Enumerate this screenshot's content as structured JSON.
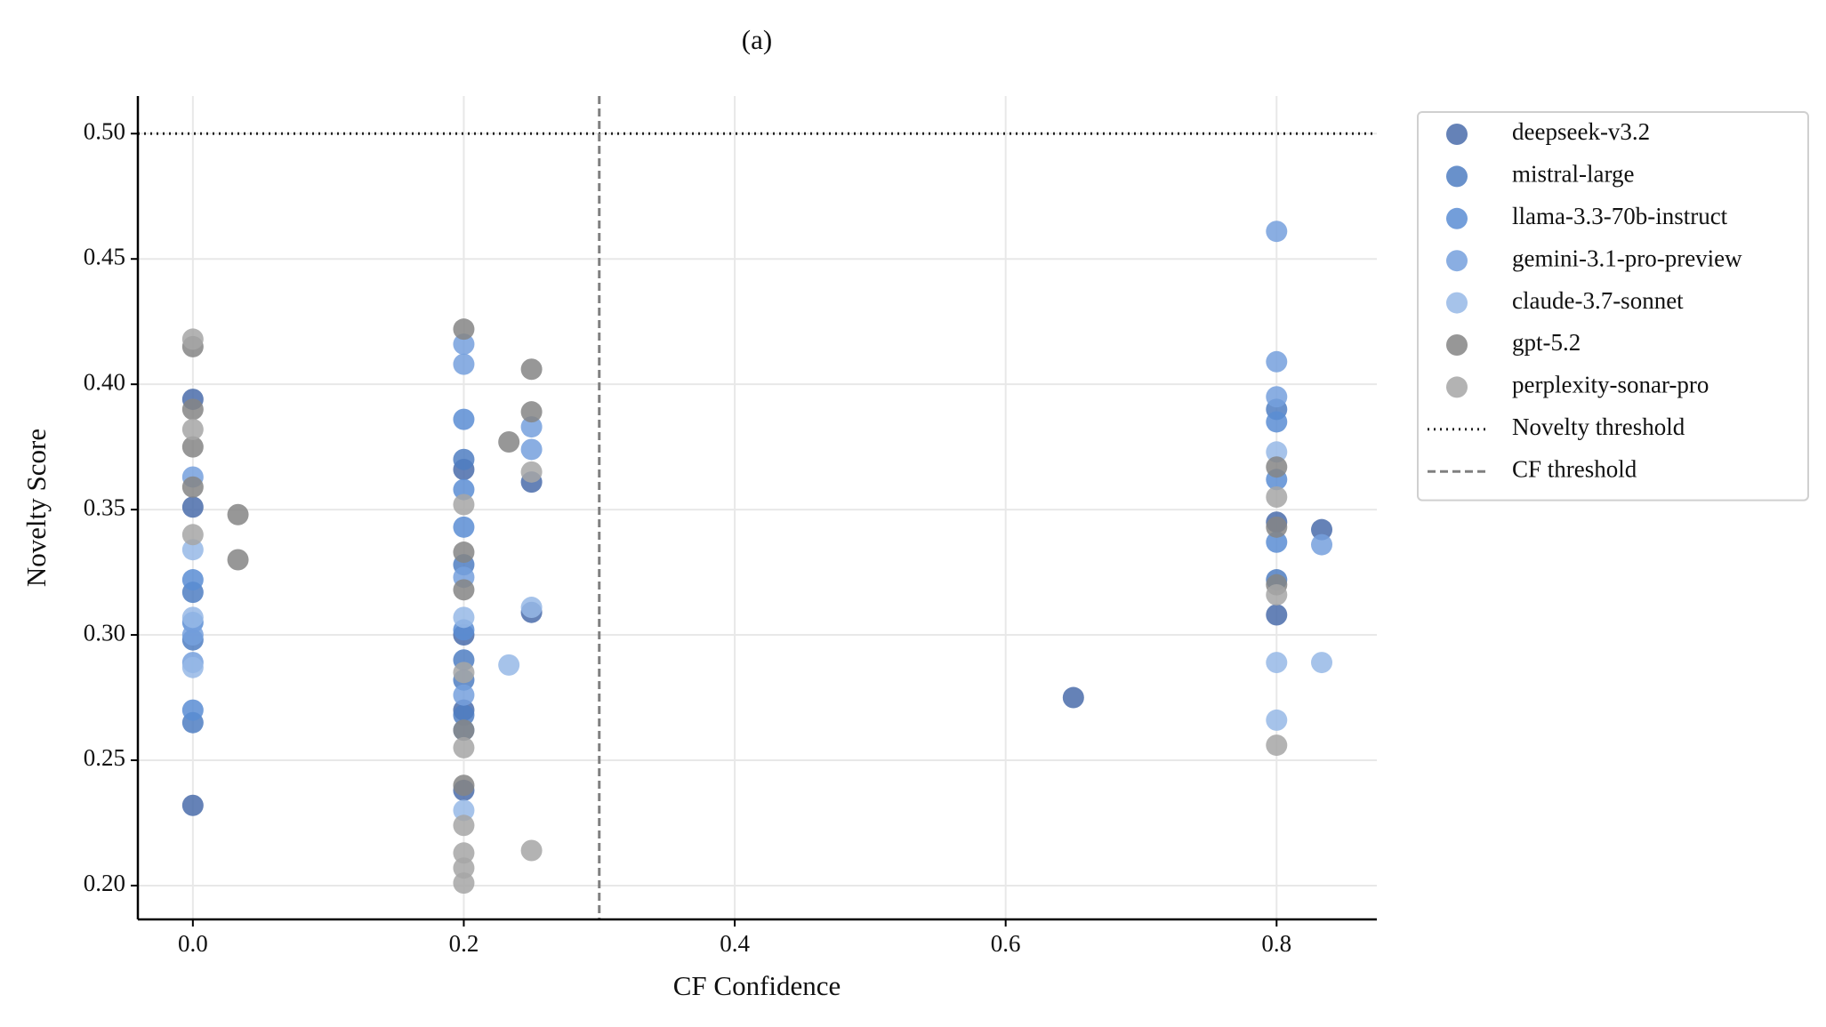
{
  "chart_data": {
    "type": "scatter",
    "title": "(a)",
    "x_label": "CF Confidence",
    "y_label": "Novelty Score",
    "xlim": [
      -0.0406,
      0.874
    ],
    "ylim": [
      0.1865,
      0.515
    ],
    "xticks": [
      {
        "value": 0,
        "label": "0.0"
      },
      0.2,
      0.4,
      0.6,
      0.8
    ],
    "yticks": [
      {
        "value": 0.2,
        "label": "0.20"
      },
      0.25,
      {
        "value": 0.3,
        "label": "0.30"
      },
      0.35,
      {
        "value": 0.4,
        "label": "0.40"
      },
      0.45,
      {
        "value": 0.5,
        "label": "0.50"
      }
    ],
    "grid": true,
    "legend": "outside right",
    "series": [
      {
        "name": "deepseek-v3.2",
        "color": "#4a6caa",
        "x": [
          0,
          0,
          0,
          0.2,
          0.2,
          0.2,
          0.2,
          0.25,
          0.25,
          0.65,
          0.8,
          0.8,
          0.8333
        ],
        "values": [
          0.232,
          0.351,
          0.394,
          0.238,
          0.27,
          0.3,
          0.366,
          0.309,
          0.361,
          0.275,
          0.308,
          0.345,
          0.342
        ]
      },
      {
        "name": "mistral-large",
        "color": "#4f7ec2",
        "x": [
          0,
          0,
          0,
          0.2,
          0.2,
          0.2,
          0.2,
          0.2,
          0.8,
          0.8
        ],
        "values": [
          0.265,
          0.298,
          0.317,
          0.268,
          0.282,
          0.29,
          0.328,
          0.37,
          0.39,
          0.322
        ]
      },
      {
        "name": "llama-3.3-70b-instruct",
        "color": "#5a8dd4",
        "x": [
          0,
          0,
          0,
          0.2,
          0.2,
          0.2,
          0.2,
          0.2,
          0.8,
          0.8,
          0.8
        ],
        "values": [
          0.27,
          0.305,
          0.322,
          0.262,
          0.302,
          0.343,
          0.358,
          0.386,
          0.337,
          0.362,
          0.385
        ]
      },
      {
        "name": "gemini-3.1-pro-preview",
        "color": "#76a0dd",
        "x": [
          0,
          0,
          0,
          0.2,
          0.2,
          0.2,
          0.2,
          0.25,
          0.25,
          0.8,
          0.8,
          0.8,
          0.8333
        ],
        "values": [
          0.289,
          0.363,
          0.3,
          0.276,
          0.323,
          0.408,
          0.416,
          0.374,
          0.383,
          0.461,
          0.409,
          0.395,
          0.336
        ]
      },
      {
        "name": "claude-3.7-sonnet",
        "color": "#96b8e6",
        "x": [
          0,
          0,
          0,
          0.2,
          0.2,
          0.2333,
          0.25,
          0.8,
          0.8,
          0.8,
          0.8333
        ],
        "values": [
          0.287,
          0.307,
          0.334,
          0.23,
          0.307,
          0.288,
          0.311,
          0.266,
          0.289,
          0.373,
          0.289
        ]
      },
      {
        "name": "gpt-5.2",
        "color": "#858585",
        "x": [
          0,
          0,
          0,
          0,
          0.0333,
          0.0333,
          0.2,
          0.2,
          0.2,
          0.2,
          0.2,
          0.2333,
          0.25,
          0.25,
          0.8,
          0.8,
          0.8
        ],
        "values": [
          0.415,
          0.39,
          0.375,
          0.359,
          0.348,
          0.33,
          0.422,
          0.333,
          0.318,
          0.262,
          0.24,
          0.377,
          0.389,
          0.406,
          0.367,
          0.343,
          0.32
        ]
      },
      {
        "name": "perplexity-sonar-pro",
        "color": "#a6a6a6",
        "x": [
          0,
          0,
          0,
          0.2,
          0.2,
          0.2,
          0.2,
          0.2,
          0.2,
          0.2,
          0.25,
          0.25,
          0.8,
          0.8,
          0.8
        ],
        "values": [
          0.418,
          0.382,
          0.34,
          0.201,
          0.207,
          0.213,
          0.224,
          0.255,
          0.285,
          0.352,
          0.214,
          0.365,
          0.256,
          0.316,
          0.355
        ]
      }
    ],
    "hlines": [
      {
        "name": "Novelty threshold",
        "value": 0.5,
        "color": "#222222",
        "dash": "dotted"
      }
    ],
    "vlines": [
      {
        "name": "CF threshold",
        "value": 0.3,
        "color": "#808080",
        "dash": "dashed"
      }
    ]
  }
}
